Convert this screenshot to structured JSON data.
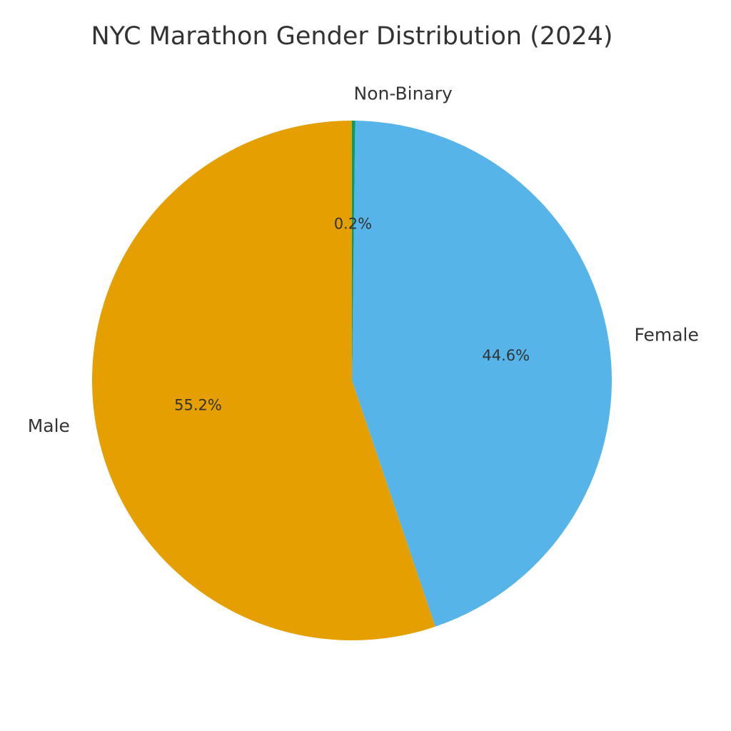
{
  "chart_data": {
    "type": "pie",
    "title": "NYC Marathon Gender Distribution (2024)",
    "categories": [
      "Male",
      "Female",
      "Non-Binary"
    ],
    "values": [
      55.2,
      44.6,
      0.2
    ],
    "value_labels": [
      "55.2%",
      "44.6%",
      "0.2%"
    ],
    "colors": [
      "#E69F00",
      "#56B4E9",
      "#009E73"
    ]
  }
}
